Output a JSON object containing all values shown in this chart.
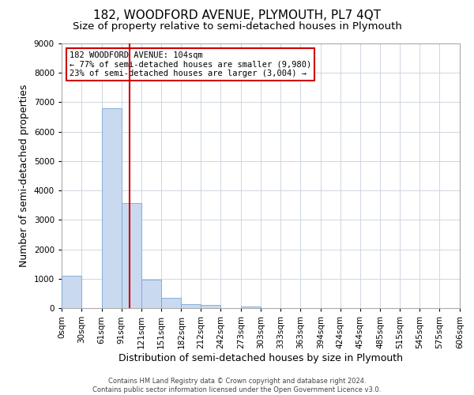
{
  "title": "182, WOODFORD AVENUE, PLYMOUTH, PL7 4QT",
  "subtitle": "Size of property relative to semi-detached houses in Plymouth",
  "xlabel": "Distribution of semi-detached houses by size in Plymouth",
  "ylabel": "Number of semi-detached properties",
  "footer_lines": [
    "Contains HM Land Registry data © Crown copyright and database right 2024.",
    "Contains public sector information licensed under the Open Government Licence v3.0."
  ],
  "bar_edges": [
    0,
    30,
    61,
    91,
    121,
    151,
    182,
    212,
    242,
    273,
    303,
    333,
    363,
    394,
    424,
    454,
    485,
    515,
    545,
    575,
    606
  ],
  "bar_heights": [
    1100,
    0,
    6800,
    3560,
    960,
    340,
    130,
    100,
    0,
    60,
    0,
    0,
    0,
    0,
    0,
    0,
    0,
    0,
    0,
    0
  ],
  "bar_color": "#c9d9f0",
  "bar_edgecolor": "#7aa6d6",
  "property_line_x": 104,
  "property_line_color": "#cc0000",
  "annotation_text_line1": "182 WOODFORD AVENUE: 104sqm",
  "annotation_text_line2": "← 77% of semi-detached houses are smaller (9,980)",
  "annotation_text_line3": "23% of semi-detached houses are larger (3,004) →",
  "annotation_box_color": "#cc0000",
  "ylim": [
    0,
    9000
  ],
  "xlim": [
    0,
    606
  ],
  "yticks": [
    0,
    1000,
    2000,
    3000,
    4000,
    5000,
    6000,
    7000,
    8000,
    9000
  ],
  "xtick_labels": [
    "0sqm",
    "30sqm",
    "61sqm",
    "91sqm",
    "121sqm",
    "151sqm",
    "182sqm",
    "212sqm",
    "242sqm",
    "273sqm",
    "303sqm",
    "333sqm",
    "363sqm",
    "394sqm",
    "424sqm",
    "454sqm",
    "485sqm",
    "515sqm",
    "545sqm",
    "575sqm",
    "606sqm"
  ],
  "xtick_positions": [
    0,
    30,
    61,
    91,
    121,
    151,
    182,
    212,
    242,
    273,
    303,
    333,
    363,
    394,
    424,
    454,
    485,
    515,
    545,
    575,
    606
  ],
  "grid_color": "#c8d0dc",
  "background_color": "#ffffff",
  "title_fontsize": 11,
  "subtitle_fontsize": 9.5,
  "axis_label_fontsize": 9,
  "tick_fontsize": 7.5,
  "footer_fontsize": 6
}
